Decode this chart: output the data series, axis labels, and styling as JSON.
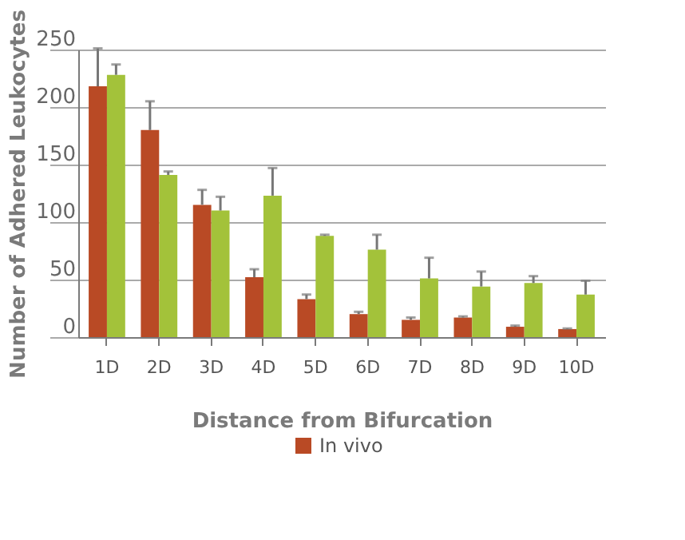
{
  "chart_data": {
    "type": "bar",
    "xlabel": "Distance from Bifurcation",
    "ylabel": "Number of Adhered Leukocytes",
    "categories": [
      "1D",
      "2D",
      "3D",
      "4D",
      "5D",
      "6D",
      "7D",
      "8D",
      "9D",
      "10D"
    ],
    "series": [
      {
        "name": "In vivo",
        "color": "#b94a25",
        "values": [
          218,
          180,
          115,
          52,
          33,
          20,
          15,
          17,
          9,
          7
        ],
        "errors": [
          [
            218,
            251
          ],
          [
            180,
            205
          ],
          [
            115,
            128
          ],
          [
            52,
            59
          ],
          [
            33,
            37
          ],
          [
            20,
            22
          ],
          [
            15,
            17
          ],
          [
            17,
            18
          ],
          [
            9,
            10
          ],
          [
            7,
            7.5
          ]
        ]
      },
      {
        "color": "#a3c23a",
        "values": [
          228,
          141,
          110,
          123,
          88,
          76,
          51,
          44,
          47,
          37
        ],
        "errors": [
          [
            228,
            237
          ],
          [
            141,
            144
          ],
          [
            110,
            122
          ],
          [
            123,
            147
          ],
          [
            88,
            89
          ],
          [
            76,
            89
          ],
          [
            51,
            69
          ],
          [
            44,
            57
          ],
          [
            47,
            53
          ],
          [
            37,
            49
          ]
        ]
      }
    ],
    "ylim": [
      0,
      250
    ],
    "yticks": [
      0,
      50,
      100,
      150,
      200,
      250
    ],
    "grid": "y",
    "legend": "bottom"
  }
}
